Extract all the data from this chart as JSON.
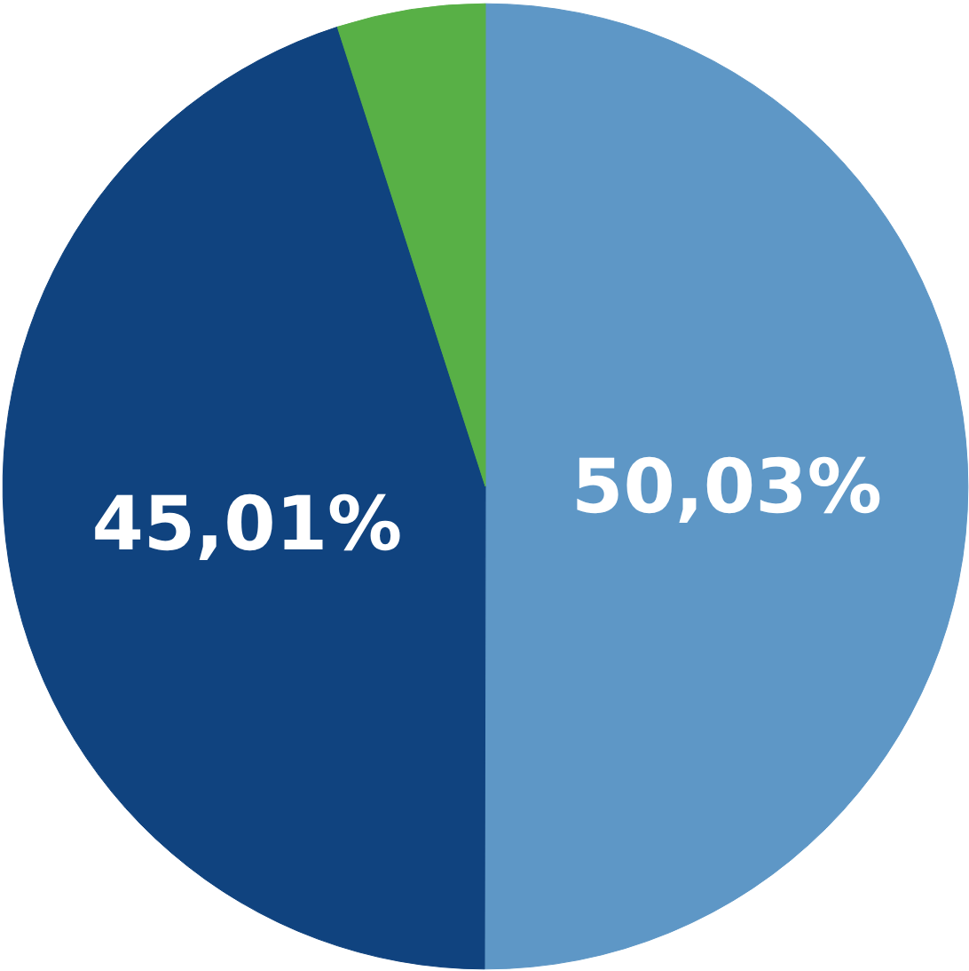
{
  "chart_data": {
    "type": "pie",
    "categories": [
      null,
      null,
      null
    ],
    "values": [
      50.03,
      45.01,
      4.96
    ],
    "colors": [
      "#5e97c6",
      "#10437f",
      "#58b046"
    ],
    "value_labels": [
      "50,03%",
      "45,01%",
      null
    ]
  }
}
